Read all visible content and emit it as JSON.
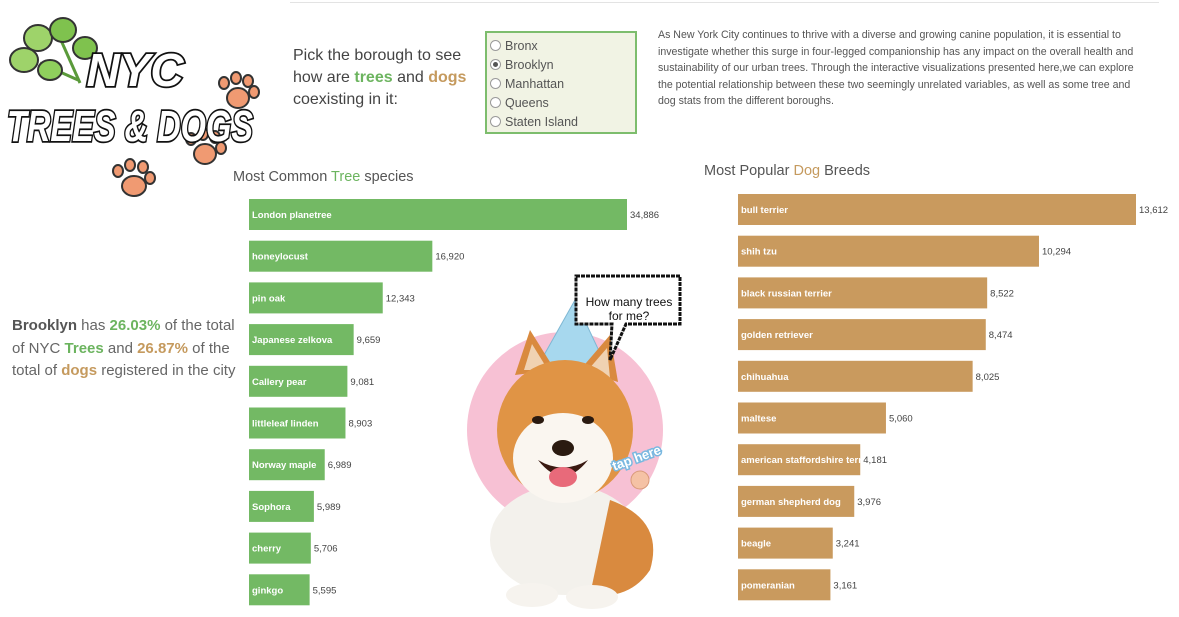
{
  "logo": {
    "line1": "NYC",
    "line2": "TREES & DOGS"
  },
  "prompt": {
    "pre": "Pick the borough to see how are ",
    "trees": "trees",
    "mid": " and ",
    "dogs": "dogs",
    "post": " coexisting in it:"
  },
  "boroughs": [
    "Bronx",
    "Brooklyn",
    "Manhattan",
    "Queens",
    "Staten Island"
  ],
  "selected_borough": "Brooklyn",
  "intro": "As New York City continues to thrive with a diverse and growing canine population, it is essential to investigate whether this surge in four-legged companionship has any impact on the overall health and sustainability of our urban trees. Through the interactive visualizations presented here,we can explore the potential relationship between these two seemingly unrelated variables, as well as some tree and dog stats from the different boroughs.",
  "summary": {
    "borough": "Brooklyn",
    "has": " has ",
    "tree_pct": "26.03%",
    "of_total": " of the total of NYC ",
    "trees_word": "Trees",
    "and": " and ",
    "dog_pct": "26.87%",
    "of_total_of": " of the total of ",
    "dogs_word": "dogs",
    "tail": " registered in the city"
  },
  "speech_bubble": {
    "line1": "How many trees",
    "line2": "for me?"
  },
  "tap_label": "tap here",
  "colors": {
    "tree": "#73b964",
    "dog": "#c99a5e",
    "tree_text": "#6cb45f",
    "dog_text": "#c59a5e",
    "pink": "#f7c1d4",
    "hat": "#9fd3ea"
  },
  "chart_data": [
    {
      "type": "bar",
      "title_pre": "Most Common ",
      "title_hl": "Tree",
      "title_post": " species",
      "categories": [
        "London planetree",
        "honeylocust",
        "pin oak",
        "Japanese zelkova",
        "Callery pear",
        "littleleaf linden",
        "Norway maple",
        "Sophora",
        "cherry",
        "ginkgo"
      ],
      "values": [
        34886,
        16920,
        12343,
        9659,
        9081,
        8903,
        6989,
        5989,
        5706,
        5595
      ],
      "labels": [
        "34,886",
        "16,920",
        "12,343",
        "9,659",
        "9,081",
        "8,903",
        "6,989",
        "5,989",
        "5,706",
        "5,595"
      ],
      "orientation": "horizontal"
    },
    {
      "type": "bar",
      "title_pre": "Most Popular ",
      "title_hl": "Dog",
      "title_post": " Breeds",
      "categories": [
        "bull terrier",
        "shih tzu",
        "black russian terrier",
        "golden retriever",
        "chihuahua",
        "maltese",
        "american staffordshire terrier",
        "german shepherd dog",
        "beagle",
        "pomeranian"
      ],
      "values": [
        13612,
        10294,
        8522,
        8474,
        8025,
        5060,
        4181,
        3976,
        3241,
        3161
      ],
      "labels": [
        "13,612",
        "10,294",
        "8,522",
        "8,474",
        "8,025",
        "5,060",
        "4,181",
        "3,976",
        "3,241",
        "3,161"
      ],
      "orientation": "horizontal"
    }
  ]
}
